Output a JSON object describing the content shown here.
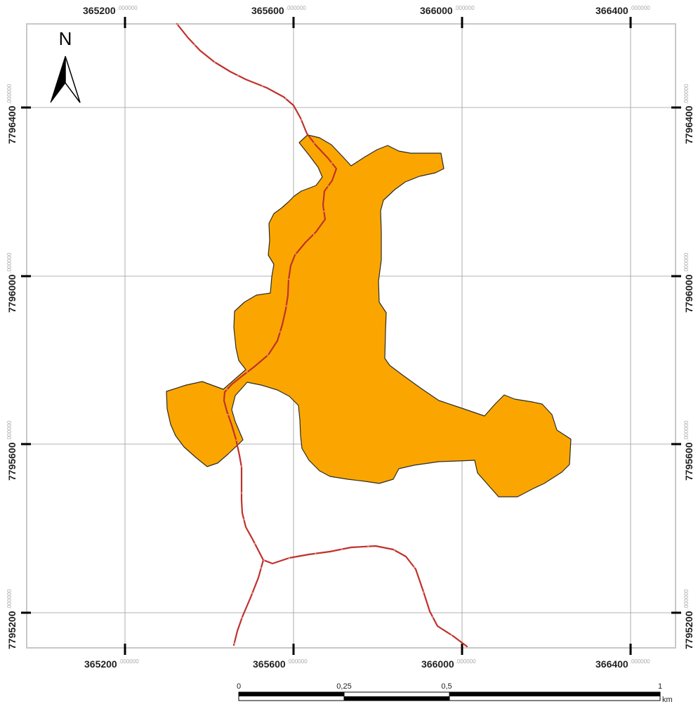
{
  "map": {
    "north_arrow_label": "N",
    "x_axis": {
      "top_ticks": [
        {
          "main": "365200",
          "dec": ".000000"
        },
        {
          "main": "365600",
          "dec": ".000000"
        },
        {
          "main": "366000",
          "dec": ".000000"
        },
        {
          "main": "366400",
          "dec": ".000000"
        }
      ],
      "bottom_ticks": [
        {
          "main": "365200",
          "dec": ".000000"
        },
        {
          "main": "365600",
          "dec": ".000000"
        },
        {
          "main": "366000",
          "dec": ".000000"
        },
        {
          "main": "366400",
          "dec": ".000000"
        }
      ]
    },
    "y_axis": {
      "left_ticks": [
        {
          "main": "7796400",
          "dec": ".000000"
        },
        {
          "main": "7796000",
          "dec": ".000000"
        },
        {
          "main": "7795600",
          "dec": ".000000"
        },
        {
          "main": "7795200",
          "dec": ".000000"
        }
      ],
      "right_ticks": [
        {
          "main": "7796400",
          "dec": ".000000"
        },
        {
          "main": "7796000",
          "dec": ".000000"
        },
        {
          "main": "7795600",
          "dec": ".000000"
        },
        {
          "main": "7795200",
          "dec": ".000000"
        }
      ]
    },
    "scale_bar": {
      "labels": [
        "0",
        "0,25",
        "0,5",
        "1"
      ],
      "unit": "km"
    },
    "colors": {
      "area_fill": "#FBA600",
      "area_stroke": "#2b2b2b",
      "road": "#C0312B",
      "grid": "#9a9a9a",
      "frame": "#c8c8c8"
    }
  }
}
